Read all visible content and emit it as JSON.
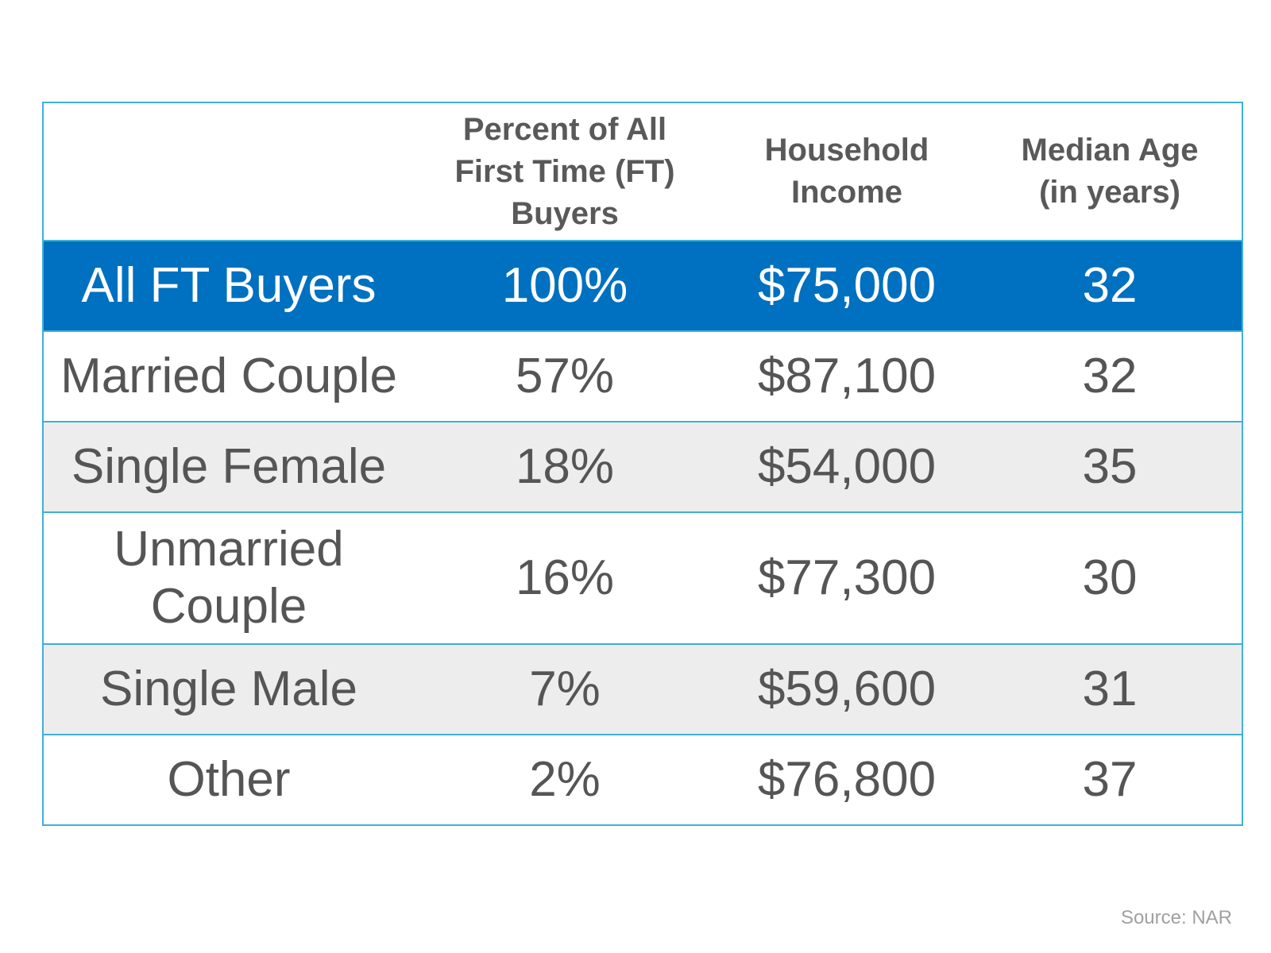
{
  "table": {
    "columns": [
      [
        "Percent of All",
        "First Time (FT)",
        "Buyers"
      ],
      [
        "Household",
        "Income"
      ],
      [
        "Median Age",
        "(in years)"
      ]
    ],
    "rows": [
      [
        "All FT Buyers",
        "100%",
        "$75,000",
        "32"
      ],
      [
        "Married Couple",
        "57%",
        "$87,100",
        "32"
      ],
      [
        "Single Female",
        "18%",
        "$54,000",
        "35"
      ],
      [
        "Unmarried Couple",
        "16%",
        "$77,300",
        "30"
      ],
      [
        "Single Male",
        "7%",
        "$59,600",
        "31"
      ],
      [
        "Other",
        "2%",
        "$76,800",
        "37"
      ]
    ]
  },
  "source": "Source: NAR"
}
